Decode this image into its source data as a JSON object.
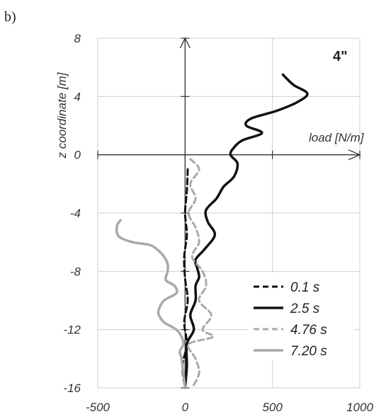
{
  "panel_label": "b)",
  "chart_data": {
    "type": "line",
    "annotation": "4\"",
    "xlabel": "load [N/m]",
    "ylabel": "z coordinate [m]",
    "xlim": [
      -500,
      1000
    ],
    "ylim": [
      -16,
      8
    ],
    "xticks": [
      -500,
      0,
      500,
      1000
    ],
    "yticks": [
      8,
      4,
      0,
      -4,
      -8,
      -12,
      -16
    ],
    "grid": true,
    "legend_position": "bottom-right",
    "series": [
      {
        "name": "0.1 s",
        "color": "#111111",
        "dash": "8,5",
        "width": 3,
        "points": [
          [
            15,
            -1.0
          ],
          [
            10,
            -2.5
          ],
          [
            0,
            -4.0
          ],
          [
            10,
            -5.5
          ],
          [
            -5,
            -7.0
          ],
          [
            0,
            -8.5
          ],
          [
            15,
            -10.0
          ],
          [
            -5,
            -11.5
          ],
          [
            10,
            -13.0
          ],
          [
            -15,
            -14.5
          ],
          [
            0,
            -16.0
          ]
        ]
      },
      {
        "name": "2.5 s",
        "color": "#111111",
        "dash": "",
        "width": 3.5,
        "points": [
          [
            560,
            5.5
          ],
          [
            620,
            4.8
          ],
          [
            700,
            4.2
          ],
          [
            640,
            3.6
          ],
          [
            520,
            3.0
          ],
          [
            380,
            2.5
          ],
          [
            350,
            2.0
          ],
          [
            440,
            1.5
          ],
          [
            330,
            1.0
          ],
          [
            280,
            0.5
          ],
          [
            260,
            0.0
          ],
          [
            300,
            -0.6
          ],
          [
            280,
            -1.5
          ],
          [
            220,
            -2.2
          ],
          [
            180,
            -3.0
          ],
          [
            120,
            -3.8
          ],
          [
            130,
            -4.6
          ],
          [
            170,
            -5.5
          ],
          [
            110,
            -6.5
          ],
          [
            60,
            -7.2
          ],
          [
            70,
            -7.8
          ],
          [
            80,
            -8.4
          ],
          [
            60,
            -9.0
          ],
          [
            60,
            -10.0
          ],
          [
            30,
            -11.0
          ],
          [
            50,
            -12.0
          ],
          [
            10,
            -13.0
          ],
          [
            10,
            -14.5
          ],
          [
            0,
            -16.0
          ]
        ]
      },
      {
        "name": "4.76 s",
        "color": "#a9a9a9",
        "dash": "8,5",
        "width": 3,
        "points": [
          [
            30,
            -0.3
          ],
          [
            80,
            -1.0
          ],
          [
            30,
            -2.0
          ],
          [
            60,
            -3.0
          ],
          [
            20,
            -4.0
          ],
          [
            60,
            -5.0
          ],
          [
            80,
            -6.0
          ],
          [
            40,
            -7.0
          ],
          [
            100,
            -8.0
          ],
          [
            120,
            -9.0
          ],
          [
            80,
            -10.0
          ],
          [
            150,
            -11.0
          ],
          [
            100,
            -12.0
          ],
          [
            160,
            -12.5
          ],
          [
            20,
            -13.0
          ],
          [
            60,
            -14.0
          ],
          [
            80,
            -15.0
          ],
          [
            40,
            -16.0
          ]
        ]
      },
      {
        "name": "7.20 s",
        "color": "#a9a9a9",
        "dash": "",
        "width": 3.5,
        "points": [
          [
            -370,
            -4.5
          ],
          [
            -390,
            -4.9
          ],
          [
            -380,
            -5.6
          ],
          [
            -300,
            -6.0
          ],
          [
            -200,
            -6.2
          ],
          [
            -150,
            -6.6
          ],
          [
            -120,
            -7.0
          ],
          [
            -100,
            -7.5
          ],
          [
            -100,
            -8.0
          ],
          [
            -110,
            -8.6
          ],
          [
            -60,
            -9.0
          ],
          [
            -50,
            -9.5
          ],
          [
            -120,
            -10.0
          ],
          [
            -150,
            -10.6
          ],
          [
            -150,
            -11.0
          ],
          [
            -120,
            -11.5
          ],
          [
            -50,
            -12.0
          ],
          [
            -20,
            -12.5
          ],
          [
            -10,
            -13.0
          ],
          [
            -30,
            -13.5
          ],
          [
            -20,
            -14.0
          ],
          [
            -10,
            -15.0
          ],
          [
            0,
            -16.0
          ]
        ]
      }
    ]
  }
}
